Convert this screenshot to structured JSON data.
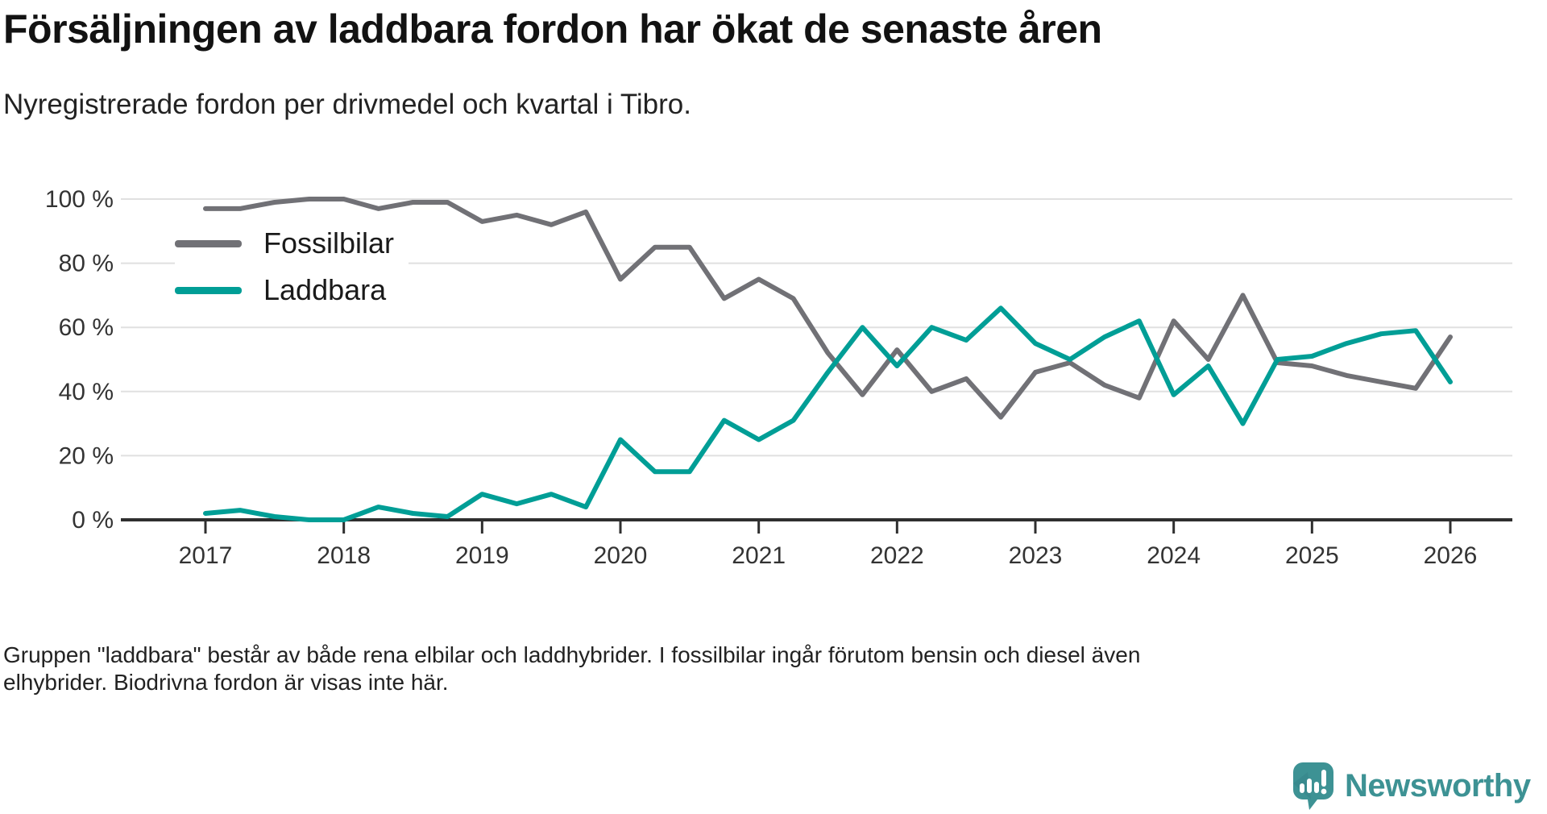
{
  "header": {
    "title": "Försäljningen av laddbara fordon har ökat de senaste åren",
    "subtitle": "Nyregistrerade fordon per drivmedel och kvartal i Tibro."
  },
  "chart_data": {
    "type": "line",
    "title": "Nyregistrerade fordon per drivmedel och kvartal i Tibro",
    "x_unit": "kvartal",
    "ylabel": "",
    "xlabel": "",
    "ylim": [
      0,
      100
    ],
    "grid": "horizontal",
    "legend_position": "top-left-inside",
    "quarters": [
      "2017 Q1",
      "2017 Q2",
      "2017 Q3",
      "2017 Q4",
      "2018 Q1",
      "2018 Q2",
      "2018 Q3",
      "2018 Q4",
      "2019 Q1",
      "2019 Q2",
      "2019 Q3",
      "2019 Q4",
      "2020 Q1",
      "2020 Q2",
      "2020 Q3",
      "2020 Q4",
      "2021 Q1",
      "2021 Q2",
      "2021 Q3",
      "2021 Q4",
      "2022 Q1",
      "2022 Q2",
      "2022 Q3",
      "2022 Q4",
      "2023 Q1",
      "2023 Q2",
      "2023 Q3",
      "2023 Q4",
      "2024 Q1",
      "2024 Q2",
      "2024 Q3",
      "2024 Q4",
      "2025 Q1",
      "2025 Q2",
      "2025 Q3",
      "2025 Q4",
      "2026 Q1"
    ],
    "series": [
      {
        "name": "Fossilbilar",
        "color": "#717176",
        "values": [
          97,
          97,
          99,
          100,
          100,
          97,
          99,
          99,
          93,
          95,
          92,
          96,
          75,
          85,
          85,
          69,
          75,
          69,
          52,
          39,
          53,
          40,
          44,
          32,
          46,
          49,
          42,
          38,
          62,
          50,
          70,
          49,
          48,
          45,
          43,
          41,
          57
        ]
      },
      {
        "name": "Laddbara",
        "color": "#009e96",
        "values": [
          2,
          3,
          1,
          0,
          0,
          4,
          2,
          1,
          8,
          5,
          8,
          4,
          25,
          15,
          15,
          31,
          25,
          31,
          46,
          60,
          48,
          60,
          56,
          66,
          55,
          50,
          57,
          62,
          39,
          48,
          30,
          50,
          51,
          55,
          58,
          59,
          43
        ]
      }
    ],
    "y_ticks": [
      {
        "label": "100 %",
        "value": 100
      },
      {
        "label": "80 %",
        "value": 80
      },
      {
        "label": "60 %",
        "value": 60
      },
      {
        "label": "40 %",
        "value": 40
      },
      {
        "label": "20 %",
        "value": 20
      },
      {
        "label": "0 %",
        "value": 0
      }
    ],
    "x_ticks": [
      {
        "label": "2017",
        "q": 0
      },
      {
        "label": "2018",
        "q": 4
      },
      {
        "label": "2019",
        "q": 8
      },
      {
        "label": "2020",
        "q": 12
      },
      {
        "label": "2021",
        "q": 16
      },
      {
        "label": "2022",
        "q": 20
      },
      {
        "label": "2023",
        "q": 24
      },
      {
        "label": "2024",
        "q": 28
      },
      {
        "label": "2025",
        "q": 32
      },
      {
        "label": "2026",
        "q": 36
      }
    ],
    "colors": {
      "gridline": "#e0e0e0",
      "axis": "#2f2f2f",
      "tick_text": "#333333"
    }
  },
  "footnote": {
    "lines": [
      "Gruppen \"laddbara\" består av både rena elbilar och laddhybrider. I fossilbilar ingår förutom bensin och diesel även",
      "elhybrider. Biodrivna fordon är visas inte här."
    ]
  },
  "branding": {
    "name": "Newsworthy",
    "color": "#3d9294"
  }
}
